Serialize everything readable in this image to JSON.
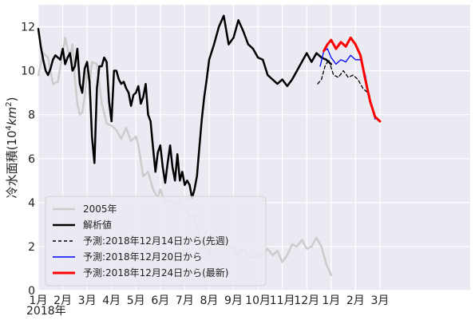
{
  "chart_data": {
    "type": "line",
    "title": "",
    "xlabel": "2018年",
    "ylabel_text": "冷水面積",
    "ylabel_unit_open": "(10",
    "ylabel_unit_exp": "4",
    "ylabel_unit_mid": "km",
    "ylabel_unit_exp2": "2",
    "ylabel_unit_close": ")",
    "ylim": [
      0,
      13
    ],
    "xlim": [
      0,
      17.7
    ],
    "yticks": [
      0,
      2,
      4,
      6,
      8,
      10,
      12
    ],
    "xticks": [
      {
        "value": 0,
        "label": "1月"
      },
      {
        "value": 1,
        "label": "2月"
      },
      {
        "value": 2,
        "label": "3月"
      },
      {
        "value": 3,
        "label": "4月"
      },
      {
        "value": 4,
        "label": "5月"
      },
      {
        "value": 5,
        "label": "6月"
      },
      {
        "value": 6,
        "label": "7月"
      },
      {
        "value": 7,
        "label": "8月"
      },
      {
        "value": 8,
        "label": "9月"
      },
      {
        "value": 9,
        "label": "10月"
      },
      {
        "value": 10,
        "label": "11月"
      },
      {
        "value": 11,
        "label": "12月"
      },
      {
        "value": 12,
        "label": "1月"
      },
      {
        "value": 13,
        "label": "2月"
      },
      {
        "value": 14,
        "label": "3月"
      }
    ],
    "grid": true,
    "legend_position": "lower-left",
    "series": [
      {
        "name": "2005年",
        "color": "#cccccc",
        "style": "solid",
        "x": [
          0.0,
          0.2,
          0.4,
          0.6,
          0.8,
          1.0,
          1.1,
          1.2,
          1.3,
          1.4,
          1.5,
          1.6,
          1.7,
          1.8,
          1.9,
          2.0,
          2.1,
          2.2,
          2.4,
          2.6,
          2.8,
          3.0,
          3.2,
          3.4,
          3.6,
          3.8,
          4.0,
          4.1,
          4.3,
          4.5,
          4.7,
          4.9,
          5.0,
          5.2,
          5.4,
          5.6,
          5.8,
          6.0,
          6.2,
          6.4,
          6.6,
          6.8,
          7.0,
          7.2,
          7.4,
          7.6,
          7.8,
          8.0,
          8.2,
          8.4,
          8.6,
          8.8,
          9.0,
          9.2,
          9.4,
          9.6,
          9.8,
          10.0,
          10.2,
          10.4,
          10.6,
          10.8,
          11.0,
          11.2,
          11.4,
          11.6,
          11.8,
          12.0
        ],
        "y": [
          9.8,
          10.8,
          10.6,
          9.4,
          9.5,
          10.8,
          11.5,
          11.0,
          10.6,
          11.2,
          9.6,
          8.5,
          8.0,
          8.1,
          8.8,
          10.0,
          9.4,
          10.4,
          10.3,
          8.5,
          7.6,
          7.5,
          7.3,
          6.9,
          7.4,
          6.8,
          7.0,
          6.6,
          5.2,
          5.4,
          4.6,
          4.2,
          4.6,
          4.0,
          4.1,
          3.9,
          4.0,
          3.8,
          3.3,
          3.4,
          2.4,
          2.1,
          1.6,
          2.6,
          2.8,
          2.5,
          2.0,
          1.9,
          1.6,
          1.9,
          1.5,
          1.5,
          1.6,
          1.6,
          1.9,
          1.6,
          1.8,
          1.3,
          1.6,
          2.1,
          2.0,
          2.3,
          1.9,
          2.0,
          2.4,
          2.0,
          1.2,
          0.7
        ]
      },
      {
        "name": "解析値",
        "color": "#000000",
        "style": "solid",
        "x": [
          0.0,
          0.1,
          0.2,
          0.3,
          0.4,
          0.5,
          0.6,
          0.7,
          0.8,
          0.9,
          1.0,
          1.1,
          1.2,
          1.3,
          1.4,
          1.5,
          1.6,
          1.7,
          1.8,
          1.9,
          2.0,
          2.1,
          2.2,
          2.3,
          2.4,
          2.5,
          2.6,
          2.7,
          2.8,
          2.9,
          3.0,
          3.1,
          3.2,
          3.3,
          3.4,
          3.5,
          3.6,
          3.7,
          3.8,
          3.9,
          4.0,
          4.1,
          4.2,
          4.3,
          4.4,
          4.5,
          4.6,
          4.7,
          4.8,
          4.9,
          5.0,
          5.1,
          5.2,
          5.3,
          5.4,
          5.5,
          5.6,
          5.7,
          5.8,
          5.9,
          6.0,
          6.1,
          6.2,
          6.3,
          6.4,
          6.5,
          6.6,
          6.7,
          6.8,
          6.9,
          7.0,
          7.2,
          7.4,
          7.6,
          7.8,
          8.0,
          8.2,
          8.4,
          8.6,
          8.8,
          9.0,
          9.2,
          9.4,
          9.6,
          9.8,
          10.0,
          10.2,
          10.4,
          10.6,
          10.8,
          11.0,
          11.2,
          11.4,
          11.6,
          11.8,
          12.0
        ],
        "y": [
          11.9,
          11.1,
          10.5,
          10.0,
          9.8,
          10.1,
          10.5,
          10.7,
          10.6,
          10.5,
          11.0,
          10.3,
          10.6,
          10.8,
          10.0,
          10.2,
          11.0,
          9.4,
          9.0,
          10.1,
          10.4,
          9.5,
          7.0,
          5.8,
          9.2,
          10.2,
          10.2,
          10.6,
          10.4,
          8.6,
          7.7,
          10.0,
          10.0,
          9.6,
          9.4,
          9.5,
          9.2,
          9.0,
          8.4,
          8.9,
          9.0,
          9.3,
          8.5,
          8.8,
          9.4,
          8.0,
          7.7,
          6.5,
          5.4,
          6.3,
          6.6,
          5.6,
          4.9,
          5.8,
          6.6,
          5.6,
          5.0,
          6.2,
          5.0,
          5.4,
          4.8,
          5.0,
          4.8,
          4.2,
          4.6,
          5.2,
          6.5,
          7.8,
          8.8,
          9.6,
          10.5,
          11.2,
          12.0,
          12.5,
          11.2,
          11.5,
          12.3,
          11.8,
          11.2,
          11.0,
          10.6,
          10.5,
          9.8,
          9.6,
          9.4,
          9.6,
          9.3,
          9.6,
          10.0,
          10.4,
          10.8,
          10.4,
          10.8,
          10.6,
          10.5,
          10.3
        ]
      },
      {
        "name": "予測:2018年12月14日から(先週)",
        "color": "#000000",
        "style": "dashed",
        "x": [
          11.45,
          11.6,
          11.75,
          11.9,
          12.1,
          12.3,
          12.5,
          12.7,
          12.9,
          13.1,
          13.3,
          13.5
        ],
        "y": [
          9.4,
          9.6,
          10.2,
          10.5,
          9.8,
          9.7,
          10.0,
          9.7,
          9.8,
          9.6,
          9.2,
          9.0
        ]
      },
      {
        "name": "予測:2018年12月20日から",
        "color": "#0000ff",
        "style": "solid",
        "x": [
          11.55,
          11.7,
          11.85,
          12.0,
          12.2,
          12.4,
          12.6,
          12.8,
          13.0,
          13.2,
          13.4,
          13.6,
          13.8
        ],
        "y": [
          10.2,
          10.9,
          11.0,
          10.6,
          10.3,
          10.5,
          10.4,
          10.7,
          10.5,
          10.5,
          9.8,
          8.6,
          7.8
        ]
      },
      {
        "name": "予測:2018年12月24日から(最新)",
        "color": "#ff0000",
        "style": "solid",
        "x": [
          11.7,
          11.85,
          12.0,
          12.2,
          12.4,
          12.6,
          12.8,
          13.0,
          13.2,
          13.4,
          13.6,
          13.8,
          14.0
        ],
        "y": [
          10.9,
          11.2,
          11.4,
          11.0,
          11.3,
          11.1,
          11.5,
          11.2,
          10.7,
          9.6,
          8.6,
          7.9,
          7.7
        ]
      }
    ]
  }
}
